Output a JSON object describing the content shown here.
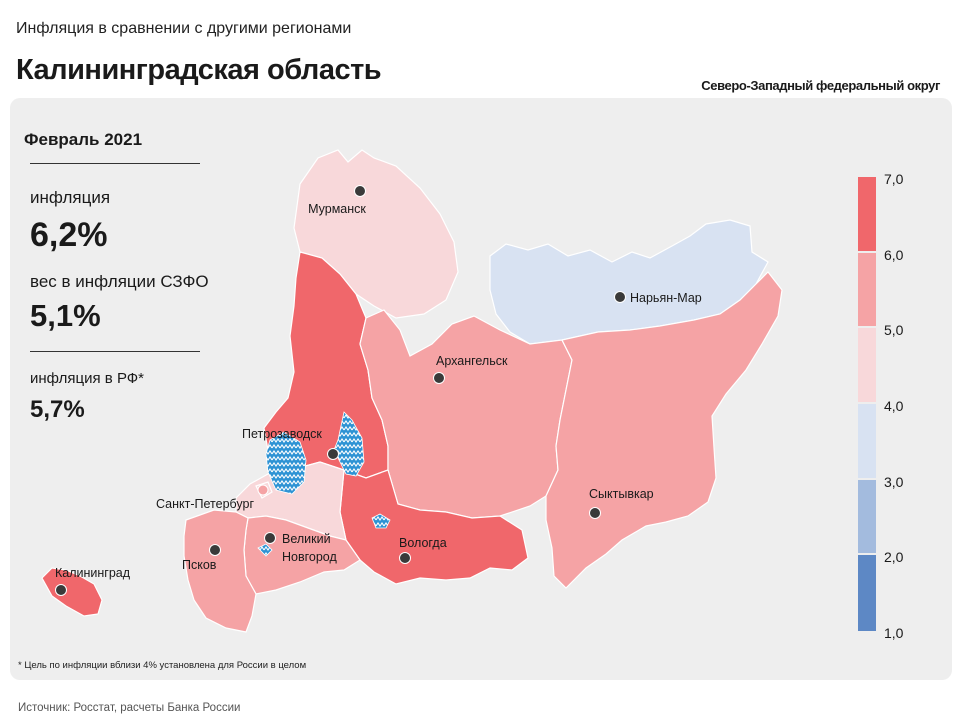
{
  "header": {
    "subtitle": "Инфляция в сравнении с другими регионами",
    "title": "Калининградская область",
    "district": "Северо-Западный федеральный округ"
  },
  "info": {
    "period": "Февраль 2021",
    "inflation_label": "инфляция",
    "inflation_value": "6,2%",
    "weight_label": "вес в инфляции  СЗФО",
    "weight_value": "5,1%",
    "rf_label": "инфляция  в РФ*",
    "rf_value": "5,7%"
  },
  "legend": {
    "ticks": [
      "7,0",
      "6,0",
      "5,0",
      "4,0",
      "3,0",
      "2,0",
      "1,0"
    ],
    "bins": [
      {
        "from": 6.0,
        "to": 7.0,
        "color": "#f0676b"
      },
      {
        "from": 5.0,
        "to": 6.0,
        "color": "#f5a3a5"
      },
      {
        "from": 4.0,
        "to": 5.0,
        "color": "#f8d8da"
      },
      {
        "from": 3.0,
        "to": 4.0,
        "color": "#d8e2f2"
      },
      {
        "from": 2.0,
        "to": 3.0,
        "color": "#a3bbde"
      },
      {
        "from": 1.0,
        "to": 2.0,
        "color": "#5d88c5"
      }
    ]
  },
  "regions": {
    "murmansk": {
      "color": "#f8d8da"
    },
    "karelia": {
      "color": "#f0676b"
    },
    "nao": {
      "color": "#d8e2f2"
    },
    "arkhangelsk": {
      "color": "#f5a3a5"
    },
    "komi": {
      "color": "#f5a3a5"
    },
    "vologda": {
      "color": "#f0676b"
    },
    "leningrad": {
      "color": "#f8d8da"
    },
    "spb": {
      "color": "#f8d8da"
    },
    "novgorod": {
      "color": "#f5a3a5"
    },
    "pskov": {
      "color": "#f5a3a5"
    },
    "kaliningrad": {
      "color": "#f0676b"
    },
    "lakes": {
      "color": "#2e93d4"
    }
  },
  "cities": {
    "murmansk": "Мурманск",
    "naryan_mar": "Нарьян-Мар",
    "arkhangelsk": "Архангельск",
    "petrozavodsk": "Петрозаводск",
    "spb": "Санкт-Петербург",
    "syktyvkar": "Сыктывкар",
    "veliky_1": "Великий",
    "veliky_2": "Новгород",
    "vologda": "Вологда",
    "pskov": "Псков",
    "kaliningrad": "Калининград"
  },
  "footnote": "* Цель по инфляции вблизи 4% установлена для России в целом",
  "source": "Источник: Росстат, расчеты Банка России"
}
